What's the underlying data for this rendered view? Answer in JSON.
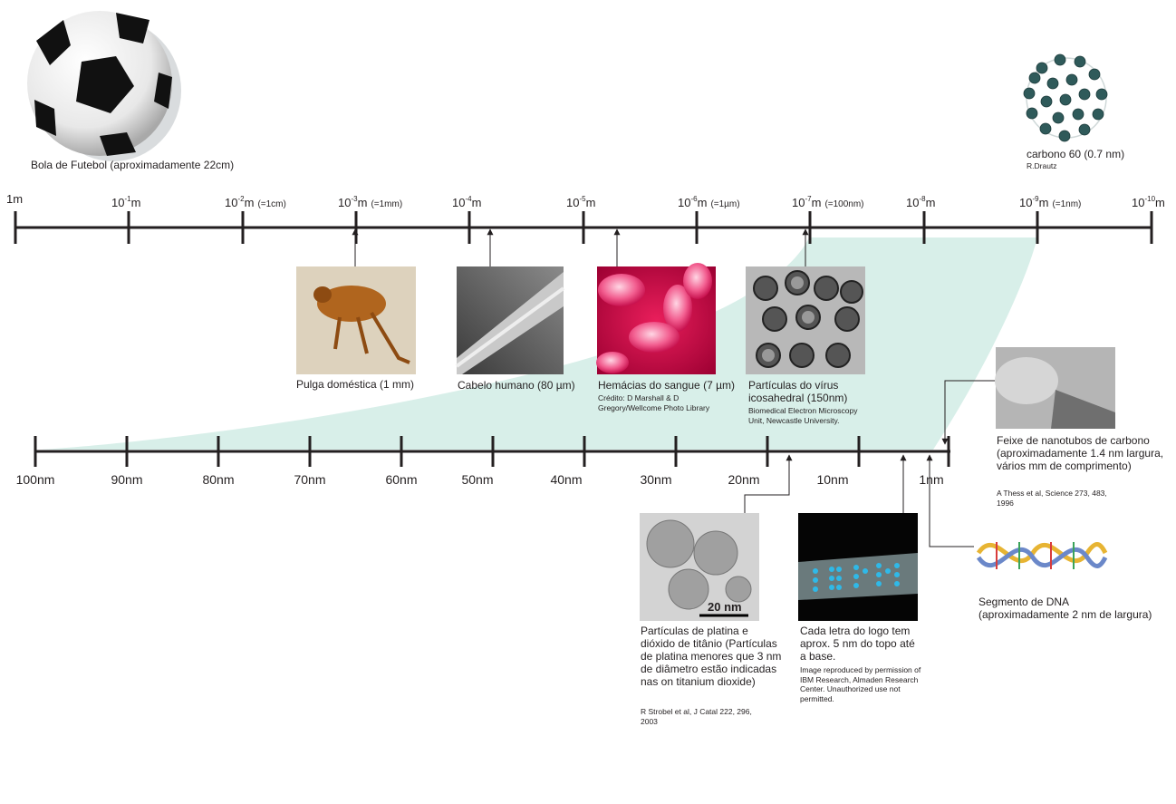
{
  "top_scale": {
    "ticks": [
      {
        "base": "1m",
        "exp": "",
        "eq": ""
      },
      {
        "base": "10",
        "exp": "-1",
        "unit": "m",
        "eq": ""
      },
      {
        "base": "10",
        "exp": "-2",
        "unit": "m",
        "eq": "(=1cm)"
      },
      {
        "base": "10",
        "exp": "-3",
        "unit": "m",
        "eq": "(=1mm)"
      },
      {
        "base": "10",
        "exp": "-4",
        "unit": "m",
        "eq": ""
      },
      {
        "base": "10",
        "exp": "-5",
        "unit": "m",
        "eq": ""
      },
      {
        "base": "10",
        "exp": "-6",
        "unit": "m",
        "eq": "(=1µm)"
      },
      {
        "base": "10",
        "exp": "-7",
        "unit": "m",
        "eq": "(=100nm)"
      },
      {
        "base": "10",
        "exp": "-8",
        "unit": "m",
        "eq": ""
      },
      {
        "base": "10",
        "exp": "-9",
        "unit": "m",
        "eq": "(=1nm)"
      },
      {
        "base": "10",
        "exp": "-10",
        "unit": "m",
        "eq": ""
      }
    ]
  },
  "bottom_scale": {
    "ticks": [
      "100nm",
      "90nm",
      "80nm",
      "70nm",
      "60nm",
      "50nm",
      "40nm",
      "30nm",
      "20nm",
      "10nm",
      "1nm"
    ]
  },
  "items": {
    "football": {
      "caption": "Bola de Futebol (aproximadamente 22cm)"
    },
    "c60": {
      "caption": "carbono 60 (0.7 nm)",
      "credit": "R.Drautz"
    },
    "flea": {
      "caption": "Pulga doméstica (1 mm)"
    },
    "hair": {
      "caption": "Cabelo humano (80 µm)"
    },
    "blood": {
      "caption": "Hemácias do sangue (7 µm)",
      "credit": "Crédito: D Marshall & D Gregory/Wellcome Photo Library"
    },
    "virus": {
      "caption": "Partículas do vírus icosahedral (150nm)",
      "credit": "Biomedical Electron Microscopy Unit, Newcastle University."
    },
    "nanotubes": {
      "caption": "Feixe de nanotubos de carbono (aproximadamente 1.4 nm largura, vários mm de comprimento)",
      "credit": "A Thess et al, Science 273, 483, 1996"
    },
    "platinum": {
      "caption": "Partículas de platina e dióxido de titânio (Partículas de platina menores que 3 nm de diâmetro estão indicadas nas on titanium dioxide)",
      "credit": "R Strobel et al, J Catal 222, 296, 2003",
      "scalebar": "20 nm"
    },
    "ibm": {
      "caption": "Cada letra do logo tem aprox. 5 nm do topo até a base.",
      "credit": "Image reproduced by permission of IBM Research, Almaden Research Center. Unauthorized use not permitted."
    },
    "dna": {
      "caption": "Segmento de DNA (aproximadamente 2 nm de largura)"
    }
  },
  "colors": {
    "zoom_band": "#d8efe9",
    "axis": "#231f20"
  }
}
